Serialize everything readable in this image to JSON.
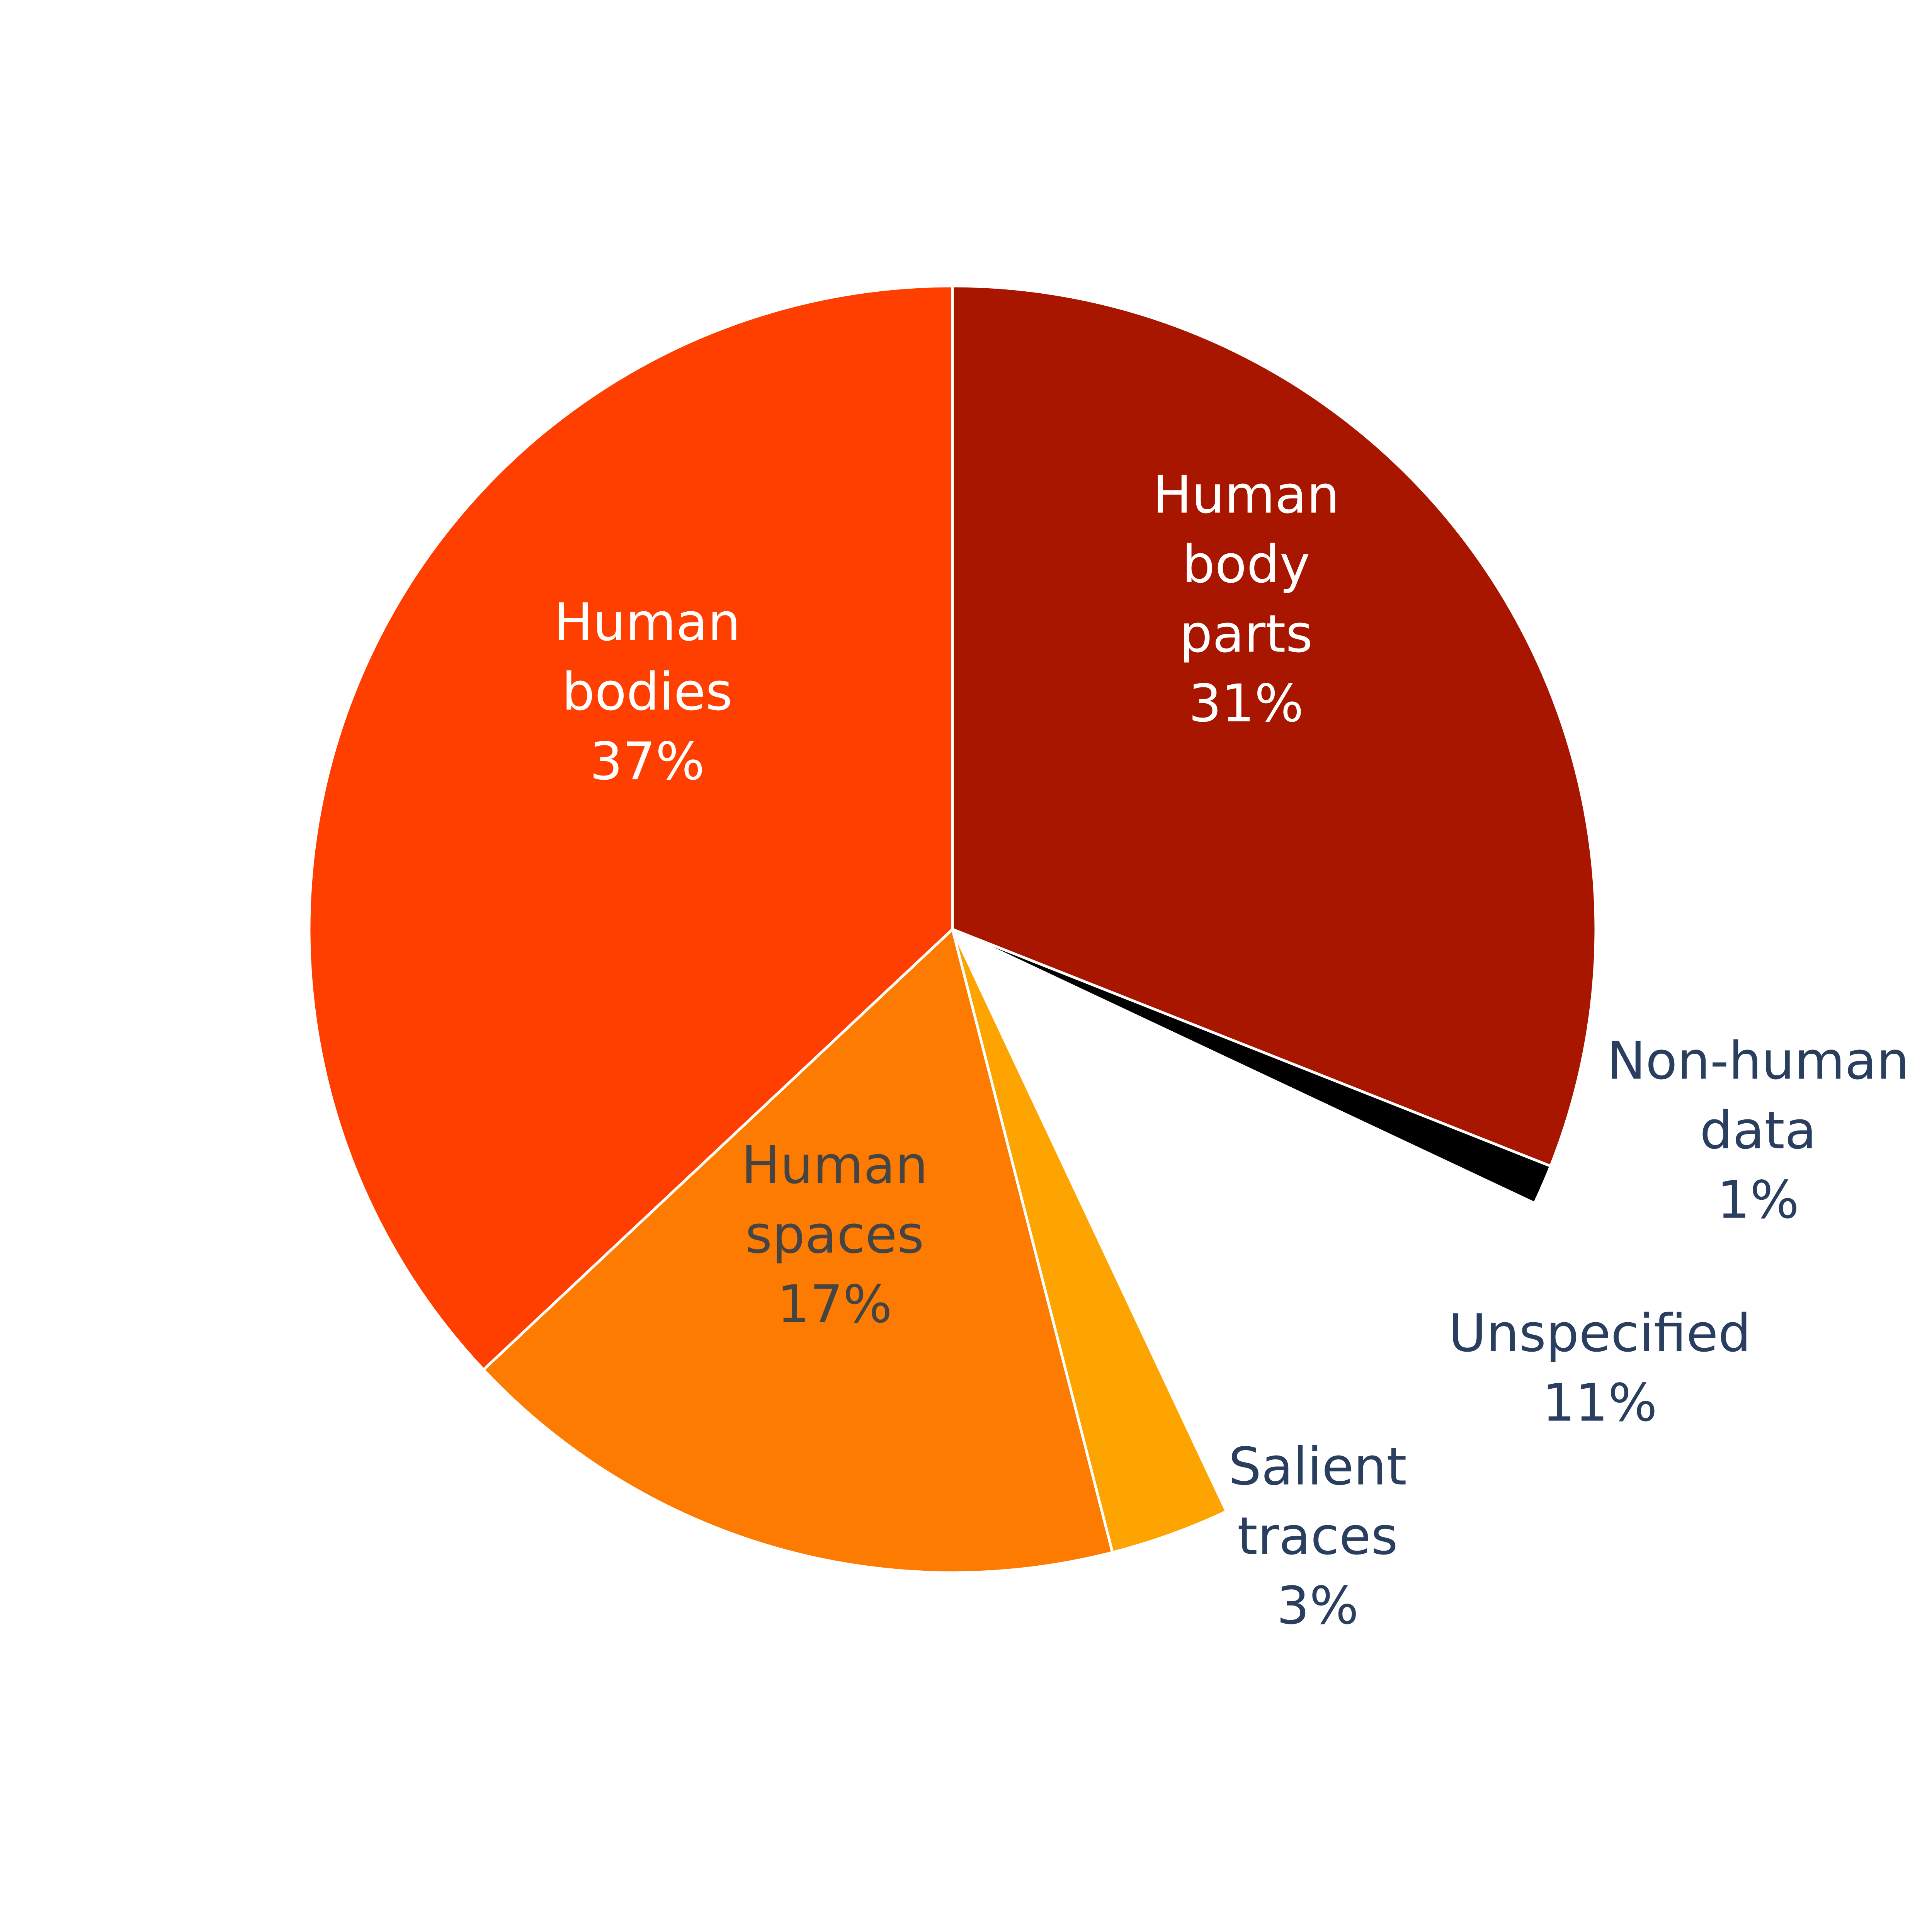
{
  "chart_data": {
    "type": "pie",
    "start": "12 o'clock, clockwise",
    "slices": [
      {
        "label": "Human body parts",
        "value": 31,
        "percent_text": "31%",
        "color": "#a81600",
        "label_color": "#ffffff",
        "label_lines": [
          "Human",
          "body",
          "parts"
        ],
        "label_position": "inside"
      },
      {
        "label": "Non-human data",
        "value": 1,
        "percent_text": "1%",
        "color": "#000000",
        "label_color": "#2a3f5f",
        "label_lines": [
          "Non-human",
          "data"
        ],
        "label_position": "outside"
      },
      {
        "label": "Unspecified",
        "value": 11,
        "percent_text": "11%",
        "color": "#ffffff",
        "label_color": "#2a3f5f",
        "label_lines": [
          "Unspecified"
        ],
        "label_position": "outside"
      },
      {
        "label": "Salient traces",
        "value": 3,
        "percent_text": "3%",
        "color": "#fea400",
        "label_color": "#2a3f5f",
        "label_lines": [
          "Salient",
          "traces"
        ],
        "label_position": "outside"
      },
      {
        "label": "Human spaces",
        "value": 17,
        "percent_text": "17%",
        "color": "#fc7b00",
        "label_color": "#444444",
        "label_lines": [
          "Human",
          "spaces"
        ],
        "label_position": "inside"
      },
      {
        "label": "Human bodies",
        "value": 37,
        "percent_text": "37%",
        "color": "#ff3f00",
        "label_color": "#ffffff",
        "label_lines": [
          "Human",
          "bodies"
        ],
        "label_position": "inside"
      }
    ],
    "slice_border_color": "#ffffff"
  }
}
